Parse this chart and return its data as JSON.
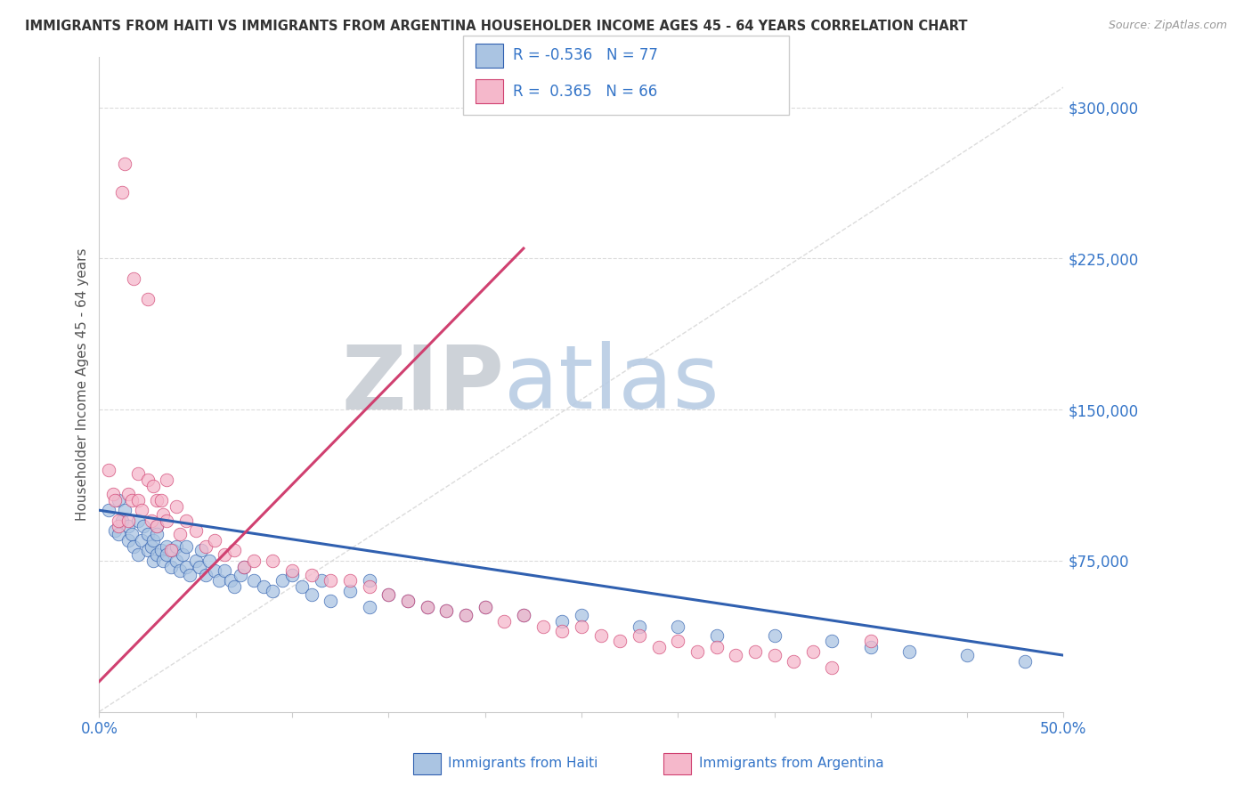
{
  "title": "IMMIGRANTS FROM HAITI VS IMMIGRANTS FROM ARGENTINA HOUSEHOLDER INCOME AGES 45 - 64 YEARS CORRELATION CHART",
  "source": "Source: ZipAtlas.com",
  "xlabel_bottom": [
    "Immigrants from Haiti",
    "Immigrants from Argentina"
  ],
  "ylabel": "Householder Income Ages 45 - 64 years",
  "xlim": [
    0.0,
    0.5
  ],
  "ylim": [
    0,
    325000
  ],
  "yticks": [
    75000,
    150000,
    225000,
    300000
  ],
  "ytick_labels": [
    "$75,000",
    "$150,000",
    "$225,000",
    "$300,000"
  ],
  "xtick_labels": [
    "0.0%",
    "50.0%"
  ],
  "xtick_positions": [
    0.0,
    0.5
  ],
  "haiti_R": -0.536,
  "haiti_N": 77,
  "argentina_R": 0.365,
  "argentina_N": 66,
  "haiti_color": "#aac4e2",
  "argentina_color": "#f5b8cb",
  "haiti_line_color": "#3060b0",
  "argentina_line_color": "#d04070",
  "diagonal_color": "#d8d8d8",
  "background_color": "#ffffff",
  "grid_color": "#d8d8d8",
  "title_color": "#333333",
  "axis_label_color": "#555555",
  "tick_color": "#3575c8",
  "watermark_ZIP_color": "#c8cdd4",
  "watermark_atlas_color": "#b8cce4",
  "haiti_scatter_x": [
    0.005,
    0.008,
    0.01,
    0.01,
    0.012,
    0.013,
    0.015,
    0.015,
    0.017,
    0.018,
    0.02,
    0.02,
    0.022,
    0.023,
    0.025,
    0.025,
    0.027,
    0.028,
    0.028,
    0.03,
    0.03,
    0.03,
    0.032,
    0.033,
    0.035,
    0.035,
    0.037,
    0.038,
    0.04,
    0.04,
    0.042,
    0.043,
    0.045,
    0.045,
    0.047,
    0.05,
    0.052,
    0.053,
    0.055,
    0.057,
    0.06,
    0.062,
    0.065,
    0.068,
    0.07,
    0.073,
    0.075,
    0.08,
    0.085,
    0.09,
    0.095,
    0.1,
    0.105,
    0.11,
    0.115,
    0.12,
    0.13,
    0.14,
    0.14,
    0.15,
    0.16,
    0.17,
    0.18,
    0.19,
    0.2,
    0.22,
    0.24,
    0.25,
    0.28,
    0.3,
    0.32,
    0.35,
    0.38,
    0.4,
    0.42,
    0.45,
    0.48
  ],
  "haiti_scatter_y": [
    100000,
    90000,
    105000,
    88000,
    95000,
    100000,
    92000,
    85000,
    88000,
    82000,
    95000,
    78000,
    85000,
    92000,
    80000,
    88000,
    82000,
    75000,
    85000,
    78000,
    92000,
    88000,
    80000,
    75000,
    82000,
    78000,
    72000,
    80000,
    75000,
    82000,
    70000,
    78000,
    72000,
    82000,
    68000,
    75000,
    72000,
    80000,
    68000,
    75000,
    70000,
    65000,
    70000,
    65000,
    62000,
    68000,
    72000,
    65000,
    62000,
    60000,
    65000,
    68000,
    62000,
    58000,
    65000,
    55000,
    60000,
    52000,
    65000,
    58000,
    55000,
    52000,
    50000,
    48000,
    52000,
    48000,
    45000,
    48000,
    42000,
    42000,
    38000,
    38000,
    35000,
    32000,
    30000,
    28000,
    25000
  ],
  "argentina_scatter_x": [
    0.005,
    0.007,
    0.008,
    0.01,
    0.01,
    0.012,
    0.013,
    0.015,
    0.015,
    0.017,
    0.018,
    0.02,
    0.02,
    0.022,
    0.025,
    0.025,
    0.027,
    0.028,
    0.03,
    0.03,
    0.032,
    0.033,
    0.035,
    0.035,
    0.037,
    0.04,
    0.042,
    0.045,
    0.05,
    0.055,
    0.06,
    0.065,
    0.07,
    0.075,
    0.08,
    0.09,
    0.1,
    0.11,
    0.12,
    0.13,
    0.14,
    0.15,
    0.16,
    0.17,
    0.18,
    0.19,
    0.2,
    0.21,
    0.22,
    0.23,
    0.24,
    0.25,
    0.26,
    0.27,
    0.28,
    0.29,
    0.3,
    0.31,
    0.32,
    0.33,
    0.34,
    0.35,
    0.36,
    0.37,
    0.38,
    0.4
  ],
  "argentina_scatter_y": [
    120000,
    108000,
    105000,
    92000,
    95000,
    258000,
    272000,
    108000,
    95000,
    105000,
    215000,
    105000,
    118000,
    100000,
    205000,
    115000,
    95000,
    112000,
    105000,
    92000,
    105000,
    98000,
    95000,
    115000,
    80000,
    102000,
    88000,
    95000,
    90000,
    82000,
    85000,
    78000,
    80000,
    72000,
    75000,
    75000,
    70000,
    68000,
    65000,
    65000,
    62000,
    58000,
    55000,
    52000,
    50000,
    48000,
    52000,
    45000,
    48000,
    42000,
    40000,
    42000,
    38000,
    35000,
    38000,
    32000,
    35000,
    30000,
    32000,
    28000,
    30000,
    28000,
    25000,
    30000,
    22000,
    35000
  ],
  "haiti_line_x0": 0.0,
  "haiti_line_y0": 100000,
  "haiti_line_x1": 0.5,
  "haiti_line_y1": 28000,
  "argentina_line_x0": 0.0,
  "argentina_line_y0": 15000,
  "argentina_line_x1": 0.22,
  "argentina_line_y1": 230000
}
